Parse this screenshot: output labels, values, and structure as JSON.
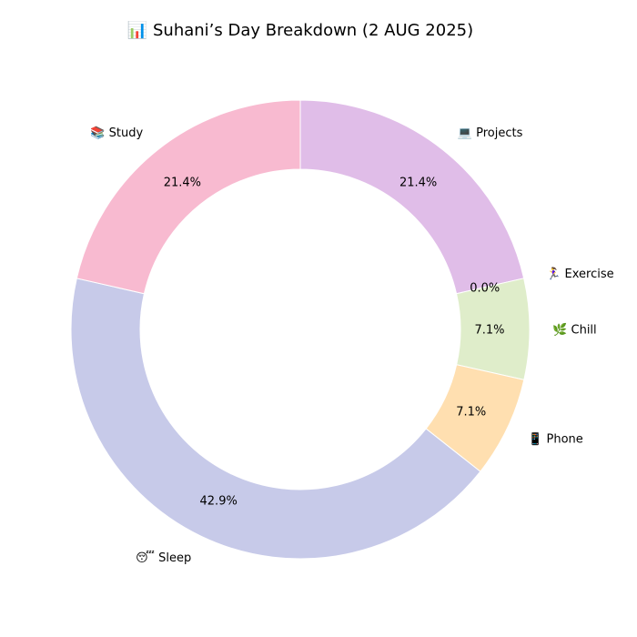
{
  "chart_data": {
    "type": "pie",
    "variant": "donut",
    "title": "📊 Suhani’s Day Breakdown (2 AUG 2025)",
    "categories": [
      "💻 Projects",
      "🏃‍♀ Exercise",
      "🌿 Chill",
      "📱 Phone",
      "😴 Sleep",
      "📚 Study"
    ],
    "values": [
      21.4,
      0.0,
      7.1,
      7.1,
      42.9,
      21.4
    ],
    "value_labels": [
      "21.4%",
      "0.0%",
      "7.1%",
      "7.1%",
      "42.9%",
      "21.4%"
    ],
    "colors": [
      "#e0bde8",
      "#c8e6c9",
      "#dfedca",
      "#ffdfb0",
      "#c7cae9",
      "#f8bad0"
    ],
    "start_angle": "top",
    "direction": "clockwise",
    "legend": "none"
  }
}
